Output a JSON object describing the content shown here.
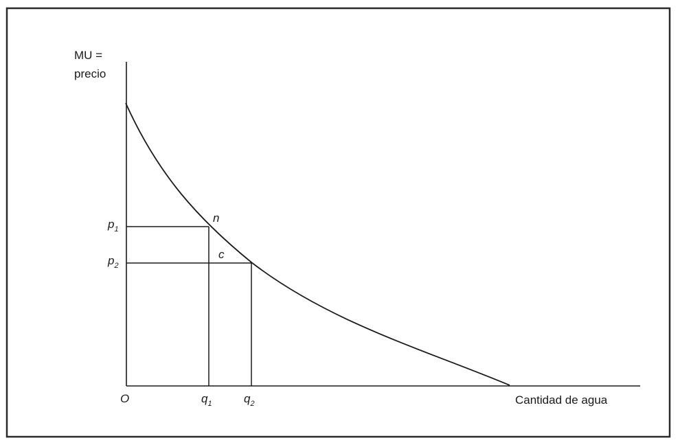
{
  "diagram": {
    "y_axis_label_line1": "MU =",
    "y_axis_label_line2": "precio",
    "x_axis_label": "Cantidad de agua",
    "origin_label": "O",
    "price_labels": [
      {
        "base": "p",
        "sub": "1"
      },
      {
        "base": "p",
        "sub": "2"
      }
    ],
    "quantity_labels": [
      {
        "base": "q",
        "sub": "1"
      },
      {
        "base": "q",
        "sub": "2"
      }
    ],
    "point_labels": {
      "n": "n",
      "c": "c"
    }
  }
}
